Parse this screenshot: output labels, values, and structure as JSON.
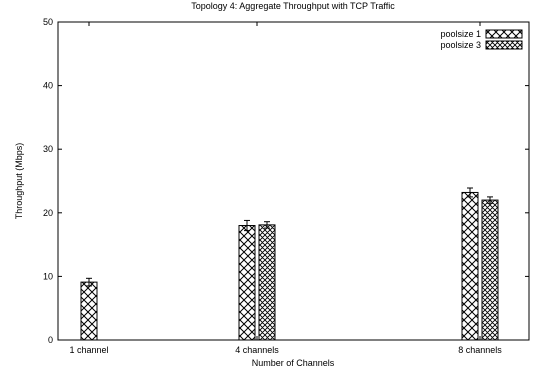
{
  "chart_data": {
    "type": "bar",
    "title": "Topology 4: Aggregate Throughput with TCP Traffic",
    "xlabel": "Number of Channels",
    "ylabel": "Throughput (Mbps)",
    "ylim": [
      0,
      50
    ],
    "yticks": [
      "0",
      "10",
      "20",
      "30",
      "40",
      "50"
    ],
    "categories": [
      "1 channel",
      "4 channels",
      "8 channels"
    ],
    "series": [
      {
        "name": "poolsize 1",
        "pattern": "crosshatch",
        "values": [
          9.1,
          18.0,
          23.2
        ],
        "errors": [
          0.6,
          0.8,
          0.7
        ]
      },
      {
        "name": "poolsize 3",
        "pattern": "dense-crosshatch",
        "values": [
          null,
          18.1,
          22.0
        ],
        "errors": [
          null,
          0.5,
          0.5
        ]
      }
    ],
    "legend": "top-right",
    "grid": false,
    "colors": {
      "axis": "#000000",
      "bar_fill": "#ffffff",
      "hatch": "#000000"
    }
  }
}
